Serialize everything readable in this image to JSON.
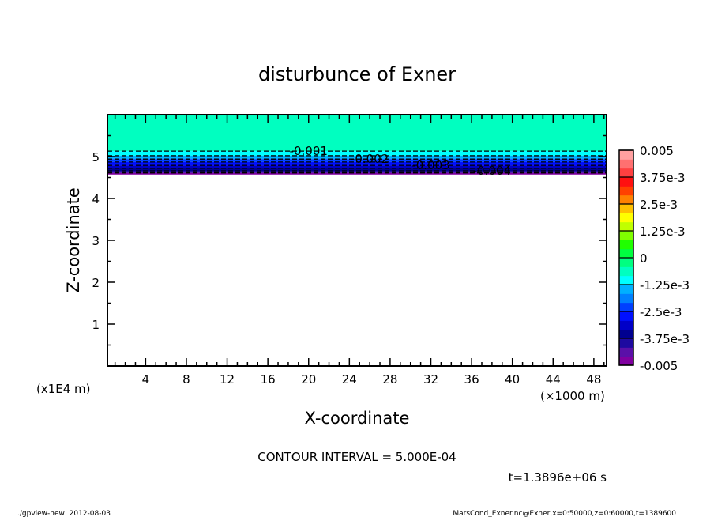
{
  "chart_data": {
    "type": "heatmap",
    "title": "disturbunce of Exner",
    "xlabel": "X-coordinate",
    "ylabel": "Z-coordinate",
    "x_unit_label": "(×1000 m)",
    "y_unit_label": "(x1E4 m)",
    "xlim": [
      0.25,
      49.25
    ],
    "ylim": [
      0,
      6
    ],
    "x_ticks": [
      4,
      8,
      12,
      16,
      20,
      24,
      28,
      32,
      36,
      40,
      44,
      48
    ],
    "y_ticks": [
      1,
      2,
      3,
      4,
      5
    ],
    "profile_note_free": true,
    "contour_interval_label": "CONTOUR INTERVAL = 5.000E-04",
    "time_label": "t=1.3896e+06 s",
    "levels_z": [
      {
        "level": -0.0005,
        "z_top": 6.0,
        "z_bottom": 5.13
      },
      {
        "level": -0.001,
        "z_top": 5.13,
        "z_bottom": 5.02
      },
      {
        "level": -0.0015,
        "z_top": 5.02,
        "z_bottom": 4.94
      },
      {
        "level": -0.002,
        "z_top": 4.94,
        "z_bottom": 4.87
      },
      {
        "level": -0.0025,
        "z_top": 4.87,
        "z_bottom": 4.79
      },
      {
        "level": -0.003,
        "z_top": 4.79,
        "z_bottom": 4.72
      },
      {
        "level": -0.0035,
        "z_top": 4.72,
        "z_bottom": 4.66
      },
      {
        "level": -0.004,
        "z_top": 4.66,
        "z_bottom": 4.61
      },
      {
        "level": -0.0045,
        "z_top": 4.61,
        "z_bottom": 4.57
      }
    ],
    "contour_labels": [
      {
        "text": "-0.001",
        "z": 5.13
      },
      {
        "text": "-0.002",
        "z": 4.94
      },
      {
        "text": "-0.003",
        "z": 4.79
      },
      {
        "text": "-0.004",
        "z": 4.66
      }
    ],
    "contour_label_x": 20,
    "colorbar": {
      "range": [
        -0.005,
        0.005
      ],
      "labels": [
        "0.005",
        "3.75e-3",
        "2.5e-3",
        "1.25e-3",
        "0",
        "-1.25e-3",
        "-2.5e-3",
        "-3.75e-3",
        "-0.005"
      ],
      "colors": [
        "#8000a0",
        "#5a10a8",
        "#1e0aa0",
        "#000090",
        "#0000c8",
        "#0010ff",
        "#0040ff",
        "#0080ff",
        "#00b0ff",
        "#00ffff",
        "#00ffc0",
        "#00ff80",
        "#00ff40",
        "#20ff00",
        "#80ff00",
        "#c0ff00",
        "#ffff00",
        "#ffc000",
        "#ff8000",
        "#ff4000",
        "#ff1010",
        "#ff4040",
        "#ff7070",
        "#ffa0a0"
      ]
    }
  },
  "footer": {
    "left": "./gpview-new  2012-08-03",
    "right": "MarsCond_Exner.nc@Exner,x=0:50000,z=0:60000,t=1389600"
  }
}
